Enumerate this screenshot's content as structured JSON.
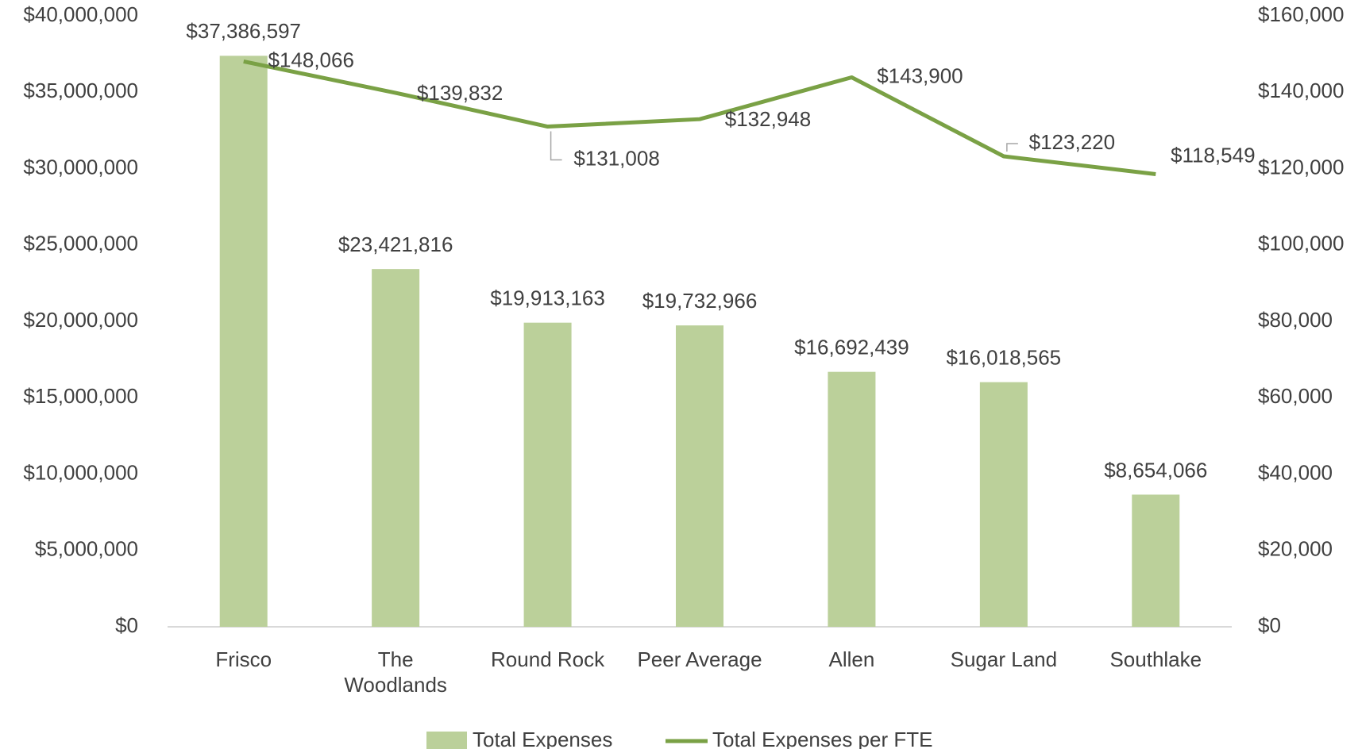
{
  "chart_data": {
    "type": "bar",
    "categories": [
      "Frisco",
      "The\nWoodlands",
      "Round Rock",
      "Peer Average",
      "Allen",
      "Sugar Land",
      "Southlake"
    ],
    "series": [
      {
        "name": "Total Expenses",
        "type": "bar",
        "color": "#bbd09a",
        "values": [
          37386597,
          23421816,
          19913163,
          19732966,
          16692439,
          16018565,
          8654066
        ],
        "value_labels": [
          "$37,386,597",
          "$23,421,816",
          "$19,913,163",
          "$19,732,966",
          "$16,692,439",
          "$16,018,565",
          "$8,654,066"
        ]
      },
      {
        "name": "Total Expenses per FTE",
        "type": "line",
        "axis": "y2",
        "color": "#7aa145",
        "values": [
          148066,
          139832,
          131008,
          132948,
          143900,
          123220,
          118549
        ],
        "value_labels": [
          "$148,066",
          "$139,832",
          "$131,008",
          "$132,948",
          "$143,900",
          "$123,220",
          "$118,549"
        ]
      }
    ],
    "ylim": [
      0,
      40000000
    ],
    "yticks": [
      {
        "value": 0,
        "label": "$0"
      },
      {
        "value": 5000000,
        "label": "$5,000,000"
      },
      {
        "value": 10000000,
        "label": "$10,000,000"
      },
      {
        "value": 15000000,
        "label": "$15,000,000"
      },
      {
        "value": 20000000,
        "label": "$20,000,000"
      },
      {
        "value": 25000000,
        "label": "$25,000,000"
      },
      {
        "value": 30000000,
        "label": "$30,000,000"
      },
      {
        "value": 35000000,
        "label": "$35,000,000"
      },
      {
        "value": 40000000,
        "label": "$40,000,000"
      }
    ],
    "y2lim": [
      0,
      160000
    ],
    "y2ticks": [
      {
        "value": 0,
        "label": "$0"
      },
      {
        "value": 20000,
        "label": "$20,000"
      },
      {
        "value": 40000,
        "label": "$40,000"
      },
      {
        "value": 60000,
        "label": "$60,000"
      },
      {
        "value": 80000,
        "label": "$80,000"
      },
      {
        "value": 100000,
        "label": "$100,000"
      },
      {
        "value": 120000,
        "label": "$120,000"
      },
      {
        "value": 140000,
        "label": "$140,000"
      },
      {
        "value": 160000,
        "label": "$160,000"
      }
    ],
    "grid": false,
    "legend": "bottom"
  }
}
